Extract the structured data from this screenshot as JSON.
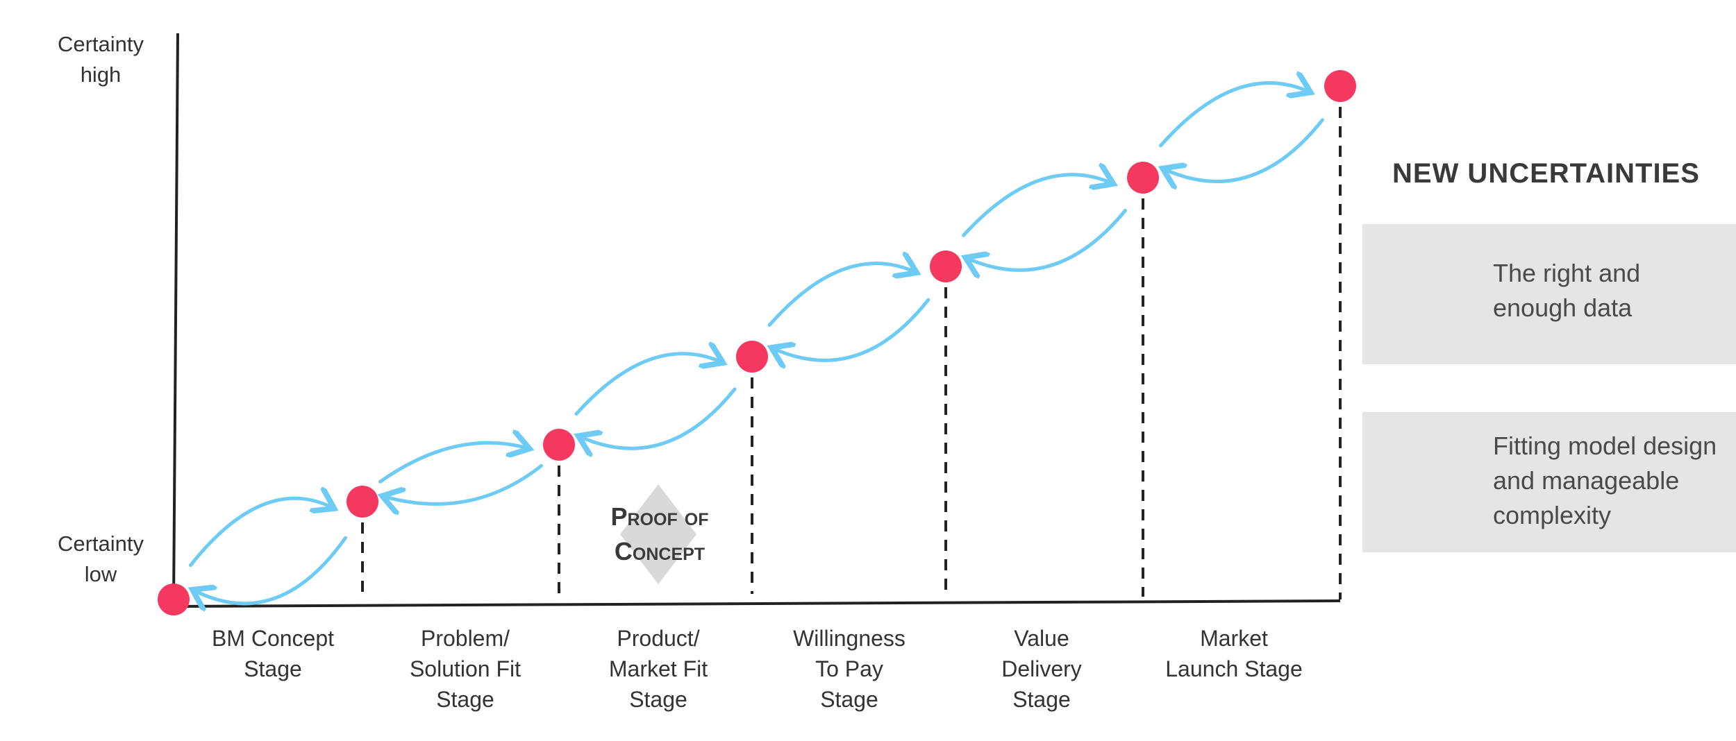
{
  "axis": {
    "high_label": [
      "Certainty",
      "high"
    ],
    "low_label": [
      "Certainty",
      "low"
    ]
  },
  "stages": [
    {
      "lines": [
        "BM Concept",
        "Stage"
      ]
    },
    {
      "lines": [
        "Problem/",
        "Solution Fit",
        "Stage"
      ]
    },
    {
      "lines": [
        "Product/",
        "Market Fit",
        "Stage"
      ]
    },
    {
      "lines": [
        "Willingness",
        "To Pay",
        "Stage"
      ]
    },
    {
      "lines": [
        "Value",
        "Delivery",
        "Stage"
      ]
    },
    {
      "lines": [
        "Market",
        "Launch Stage"
      ]
    }
  ],
  "milestone_count": 7,
  "proof_of_concept": [
    "Proof of",
    "Concept"
  ],
  "new_uncertainties": {
    "title": "NEW UNCERTAINTIES",
    "items": [
      {
        "icon": "database-filter-icon",
        "lines": [
          "The right and",
          "enough data"
        ]
      },
      {
        "icon": "network-hub-icon",
        "lines": [
          "Fitting model design",
          "and manageable",
          "complexity"
        ]
      }
    ]
  },
  "colors": {
    "milestone": "#f5385f",
    "arrow": "#6ecbf5",
    "axis": "#222222",
    "diamond": "#d9d9d9",
    "panel": "#e5e5e5",
    "icon": "#f5385f"
  }
}
